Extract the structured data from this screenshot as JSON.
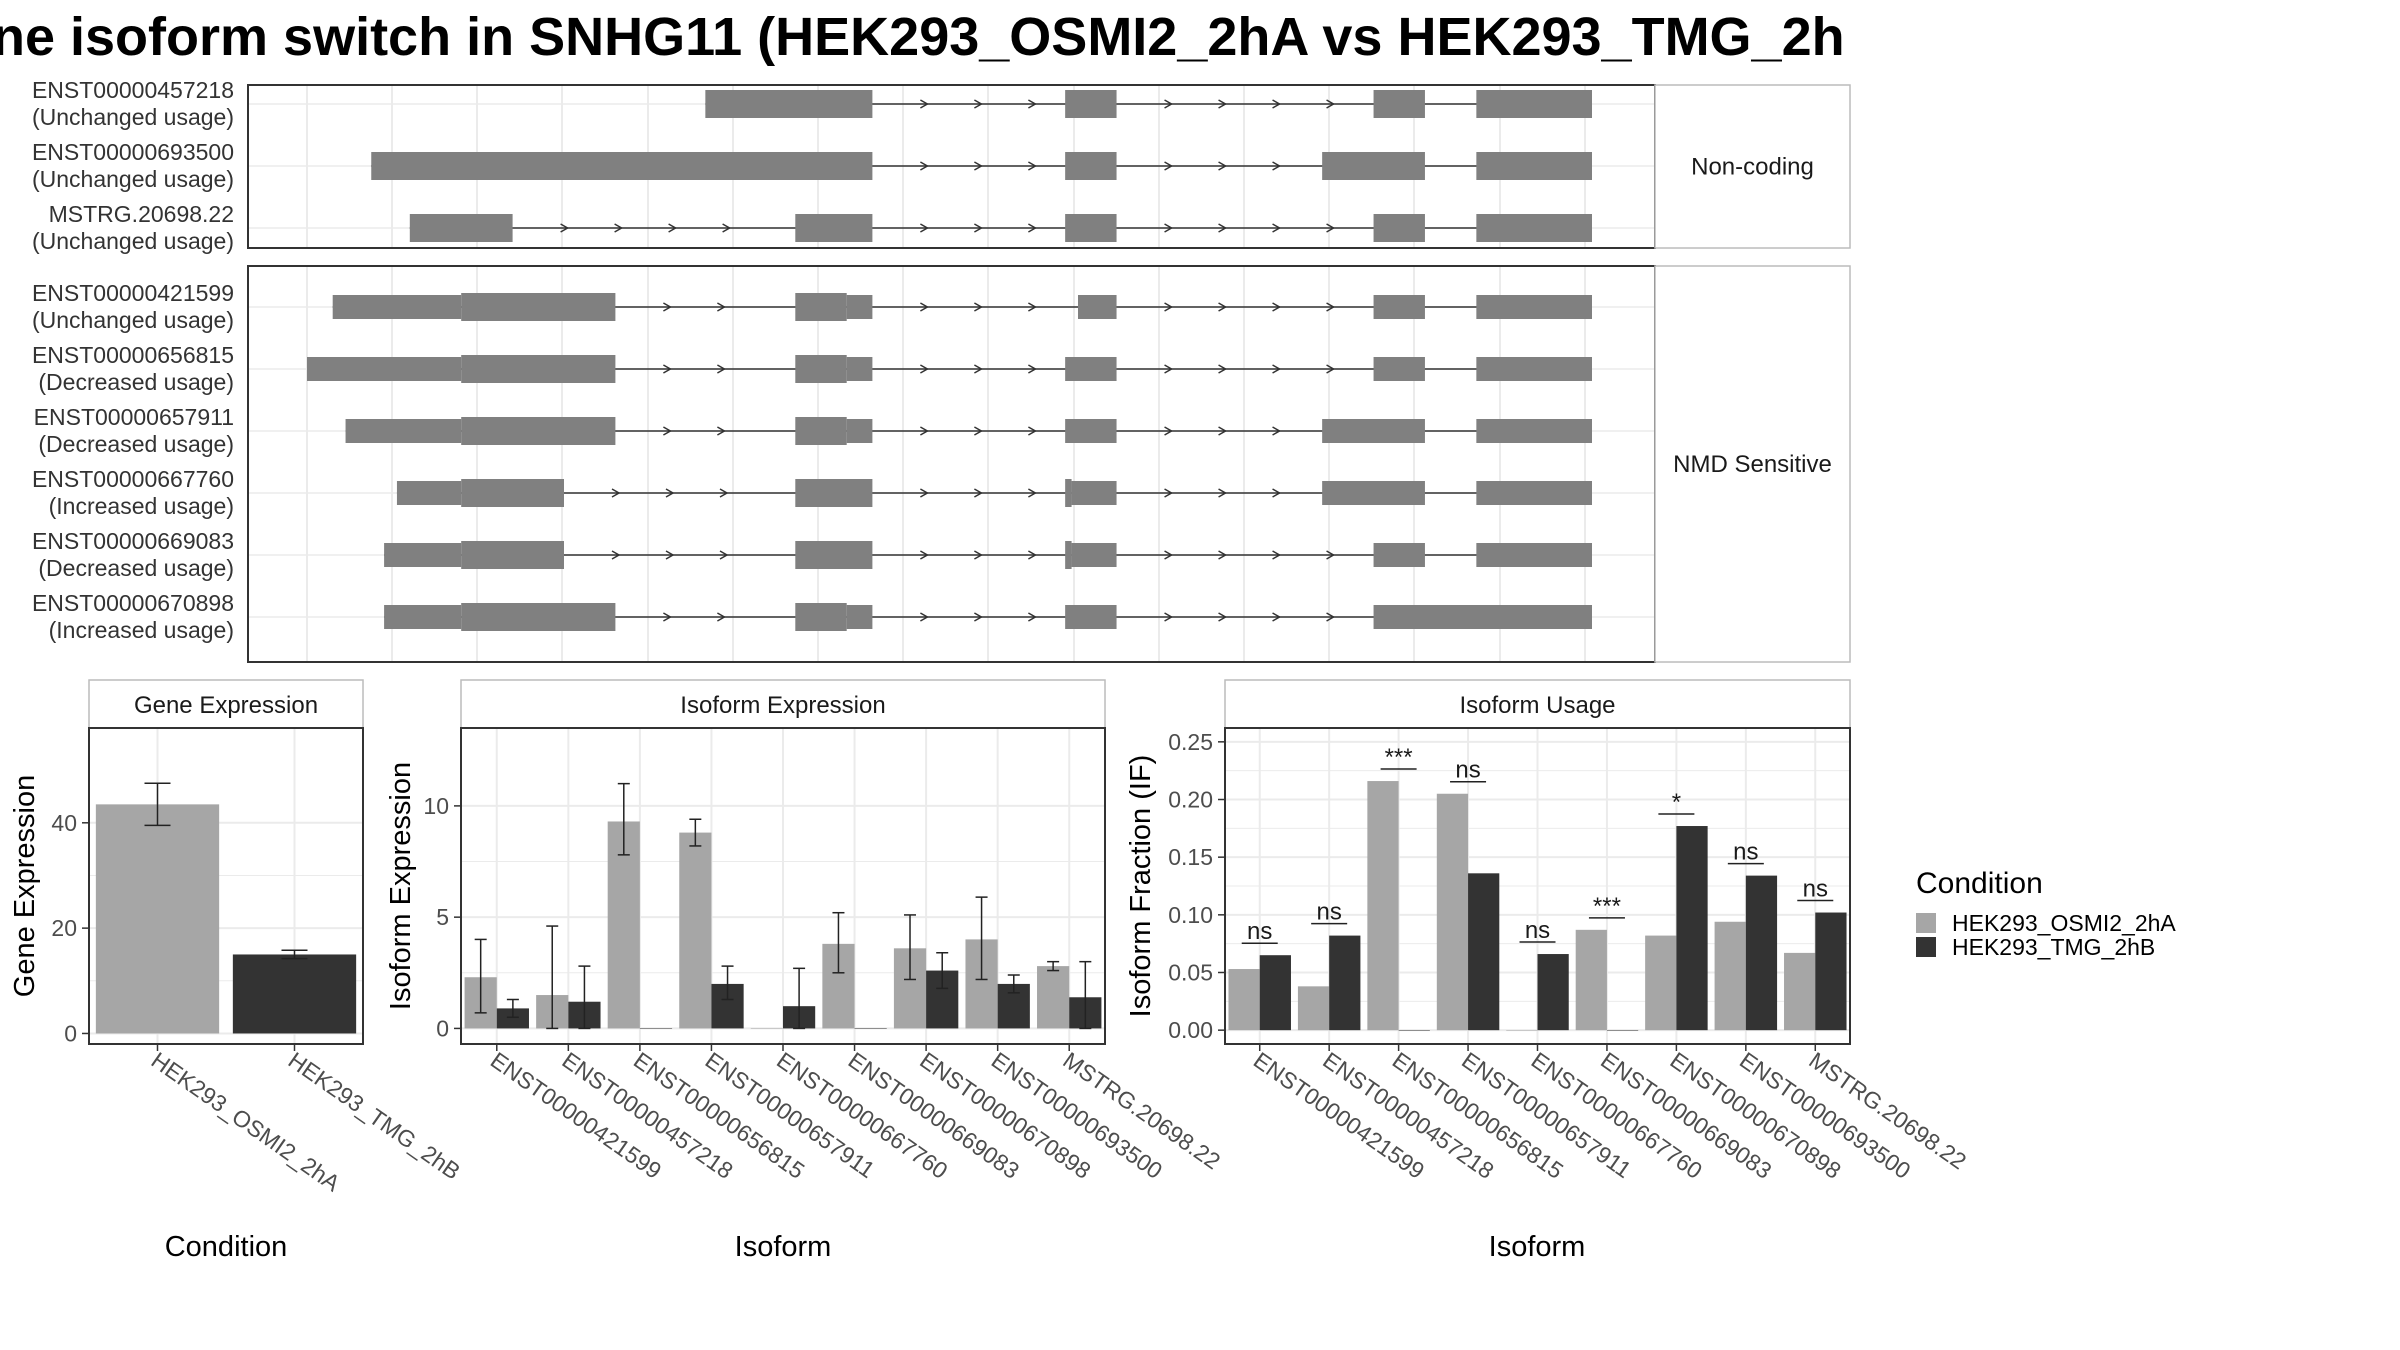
{
  "title": "ne isoform switch in SNHG11 (HEK293_OSMI2_2hA vs HEK293_TMG_2h",
  "colors": {
    "transcript": "#808080",
    "cond1": "#a6a6a6",
    "cond2": "#333333",
    "grid": "#ebebeb",
    "frame": "#333333"
  },
  "transcript_panels": [
    {
      "label": "Non-coding",
      "transcripts": [
        {
          "id": "ENST00000457218",
          "status": "(Unchanged usage)",
          "exons": [
            [
              0.31,
              0.44,
              "full"
            ],
            [
              0.59,
              0.63,
              "full"
            ],
            [
              0.83,
              0.87,
              "full"
            ],
            [
              0.91,
              1.0,
              "full"
            ]
          ]
        },
        {
          "id": "ENST00000693500",
          "status": "(Unchanged usage)",
          "exons": [
            [
              0.05,
              0.44,
              "full"
            ],
            [
              0.59,
              0.63,
              "full"
            ],
            [
              0.79,
              0.87,
              "full"
            ],
            [
              0.91,
              1.0,
              "full"
            ]
          ]
        },
        {
          "id": "MSTRG.20698.22",
          "status": "(Unchanged usage)",
          "exons": [
            [
              0.08,
              0.16,
              "full"
            ],
            [
              0.38,
              0.44,
              "full"
            ],
            [
              0.59,
              0.63,
              "full"
            ],
            [
              0.83,
              0.87,
              "full"
            ],
            [
              0.91,
              1.0,
              "full"
            ]
          ]
        }
      ]
    },
    {
      "label": "NMD Sensitive",
      "transcripts": [
        {
          "id": "ENST00000421599",
          "status": "(Unchanged usage)",
          "exons": [
            [
              0.02,
              0.12,
              "utr"
            ],
            [
              0.12,
              0.24,
              "full"
            ],
            [
              0.38,
              0.42,
              "full"
            ],
            [
              0.42,
              0.44,
              "utr"
            ],
            [
              0.6,
              0.63,
              "utr"
            ],
            [
              0.83,
              0.87,
              "utr"
            ],
            [
              0.91,
              1.0,
              "utr"
            ]
          ]
        },
        {
          "id": "ENST00000656815",
          "status": "(Decreased usage)",
          "exons": [
            [
              0.0,
              0.12,
              "utr"
            ],
            [
              0.12,
              0.24,
              "full"
            ],
            [
              0.38,
              0.42,
              "full"
            ],
            [
              0.42,
              0.44,
              "utr"
            ],
            [
              0.59,
              0.63,
              "utr"
            ],
            [
              0.83,
              0.87,
              "utr"
            ],
            [
              0.91,
              1.0,
              "utr"
            ]
          ]
        },
        {
          "id": "ENST00000657911",
          "status": "(Decreased usage)",
          "exons": [
            [
              0.03,
              0.12,
              "utr"
            ],
            [
              0.12,
              0.24,
              "full"
            ],
            [
              0.38,
              0.42,
              "full"
            ],
            [
              0.42,
              0.44,
              "utr"
            ],
            [
              0.59,
              0.63,
              "utr"
            ],
            [
              0.79,
              0.87,
              "utr"
            ],
            [
              0.91,
              1.0,
              "utr"
            ]
          ]
        },
        {
          "id": "ENST00000667760",
          "status": "(Increased usage)",
          "exons": [
            [
              0.07,
              0.12,
              "utr"
            ],
            [
              0.12,
              0.2,
              "full"
            ],
            [
              0.38,
              0.44,
              "full"
            ],
            [
              0.59,
              0.595,
              "full"
            ],
            [
              0.595,
              0.63,
              "utr"
            ],
            [
              0.79,
              0.87,
              "utr"
            ],
            [
              0.91,
              1.0,
              "utr"
            ]
          ]
        },
        {
          "id": "ENST00000669083",
          "status": "(Decreased usage)",
          "exons": [
            [
              0.06,
              0.12,
              "utr"
            ],
            [
              0.12,
              0.2,
              "full"
            ],
            [
              0.38,
              0.44,
              "full"
            ],
            [
              0.59,
              0.595,
              "full"
            ],
            [
              0.595,
              0.63,
              "utr"
            ],
            [
              0.83,
              0.87,
              "utr"
            ],
            [
              0.91,
              1.0,
              "utr"
            ]
          ]
        },
        {
          "id": "ENST00000670898",
          "status": "(Increased usage)",
          "exons": [
            [
              0.06,
              0.12,
              "utr"
            ],
            [
              0.12,
              0.24,
              "full"
            ],
            [
              0.38,
              0.42,
              "full"
            ],
            [
              0.42,
              0.44,
              "utr"
            ],
            [
              0.59,
              0.63,
              "utr"
            ],
            [
              0.83,
              1.0,
              "utr"
            ]
          ]
        }
      ]
    }
  ],
  "chart_data": [
    {
      "type": "bar",
      "title": "Gene Expression",
      "xlabel": "Condition",
      "ylabel": "Gene Expression",
      "categories": [
        "HEK293_OSMI2_2hA",
        "HEK293_TMG_2hB"
      ],
      "values": [
        43.5,
        15.0
      ],
      "error": [
        [
          39.5,
          47.5
        ],
        [
          14.2,
          15.8
        ]
      ],
      "ylim": [
        -2,
        58
      ],
      "yticks": [
        0,
        20,
        40
      ],
      "grid": true
    },
    {
      "type": "bar",
      "title": "Isoform Expression",
      "xlabel": "Isoform",
      "ylabel": "Isoform Expression",
      "categories": [
        "ENST00000421599",
        "ENST00000457218",
        "ENST00000656815",
        "ENST00000657911",
        "ENST00000667760",
        "ENST00000669083",
        "ENST00000670898",
        "ENST00000693500",
        "MSTRG.20698.22"
      ],
      "series": [
        {
          "name": "HEK293_OSMI2_2hA",
          "values": [
            2.3,
            1.5,
            9.3,
            8.8,
            0,
            3.8,
            3.6,
            4.0,
            2.8
          ],
          "error": [
            [
              0.7,
              4.0
            ],
            [
              0,
              4.6
            ],
            [
              7.8,
              11.0
            ],
            [
              8.2,
              9.4
            ],
            null,
            [
              2.5,
              5.2
            ],
            [
              2.2,
              5.1
            ],
            [
              2.2,
              5.9
            ],
            [
              2.6,
              3.0
            ]
          ]
        },
        {
          "name": "HEK293_TMG_2hB",
          "values": [
            0.9,
            1.2,
            0,
            2.0,
            1.0,
            0,
            2.6,
            2.0,
            1.4
          ],
          "error": [
            [
              0.5,
              1.3
            ],
            [
              0,
              2.8
            ],
            null,
            [
              1.3,
              2.8
            ],
            [
              0,
              2.7
            ],
            null,
            [
              1.8,
              3.4
            ],
            [
              1.6,
              2.4
            ],
            [
              0,
              3.0
            ]
          ]
        }
      ],
      "ylim": [
        -0.7,
        13.5
      ],
      "yticks": [
        0,
        5,
        10
      ],
      "grid": true
    },
    {
      "type": "bar",
      "title": "Isoform Usage",
      "xlabel": "Isoform",
      "ylabel": "Isoform Fraction (IF)",
      "categories": [
        "ENST00000421599",
        "ENST00000457218",
        "ENST00000656815",
        "ENST00000657911",
        "ENST00000667760",
        "ENST00000669083",
        "ENST00000670898",
        "ENST00000693500",
        "MSTRG.20698.22"
      ],
      "series": [
        {
          "name": "HEK293_OSMI2_2hA",
          "values": [
            0.053,
            0.038,
            0.216,
            0.205,
            0,
            0.087,
            0.082,
            0.094,
            0.067
          ]
        },
        {
          "name": "HEK293_TMG_2hB",
          "values": [
            0.065,
            0.082,
            0,
            0.136,
            0.066,
            0,
            0.177,
            0.134,
            0.102
          ]
        }
      ],
      "significance": [
        "ns",
        "ns",
        "***",
        "ns",
        "ns",
        "***",
        "*",
        "ns",
        "ns"
      ],
      "ylim": [
        -0.012,
        0.262
      ],
      "yticks": [
        0.0,
        0.05,
        0.1,
        0.15,
        0.2,
        0.25
      ],
      "ytick_labels": [
        "0.00",
        "0.05",
        "0.10",
        "0.15",
        "0.20",
        "0.25"
      ],
      "grid": true
    }
  ],
  "legend": {
    "title": "Condition",
    "items": [
      "HEK293_OSMI2_2hA",
      "HEK293_TMG_2hB"
    ],
    "placement": "right"
  }
}
